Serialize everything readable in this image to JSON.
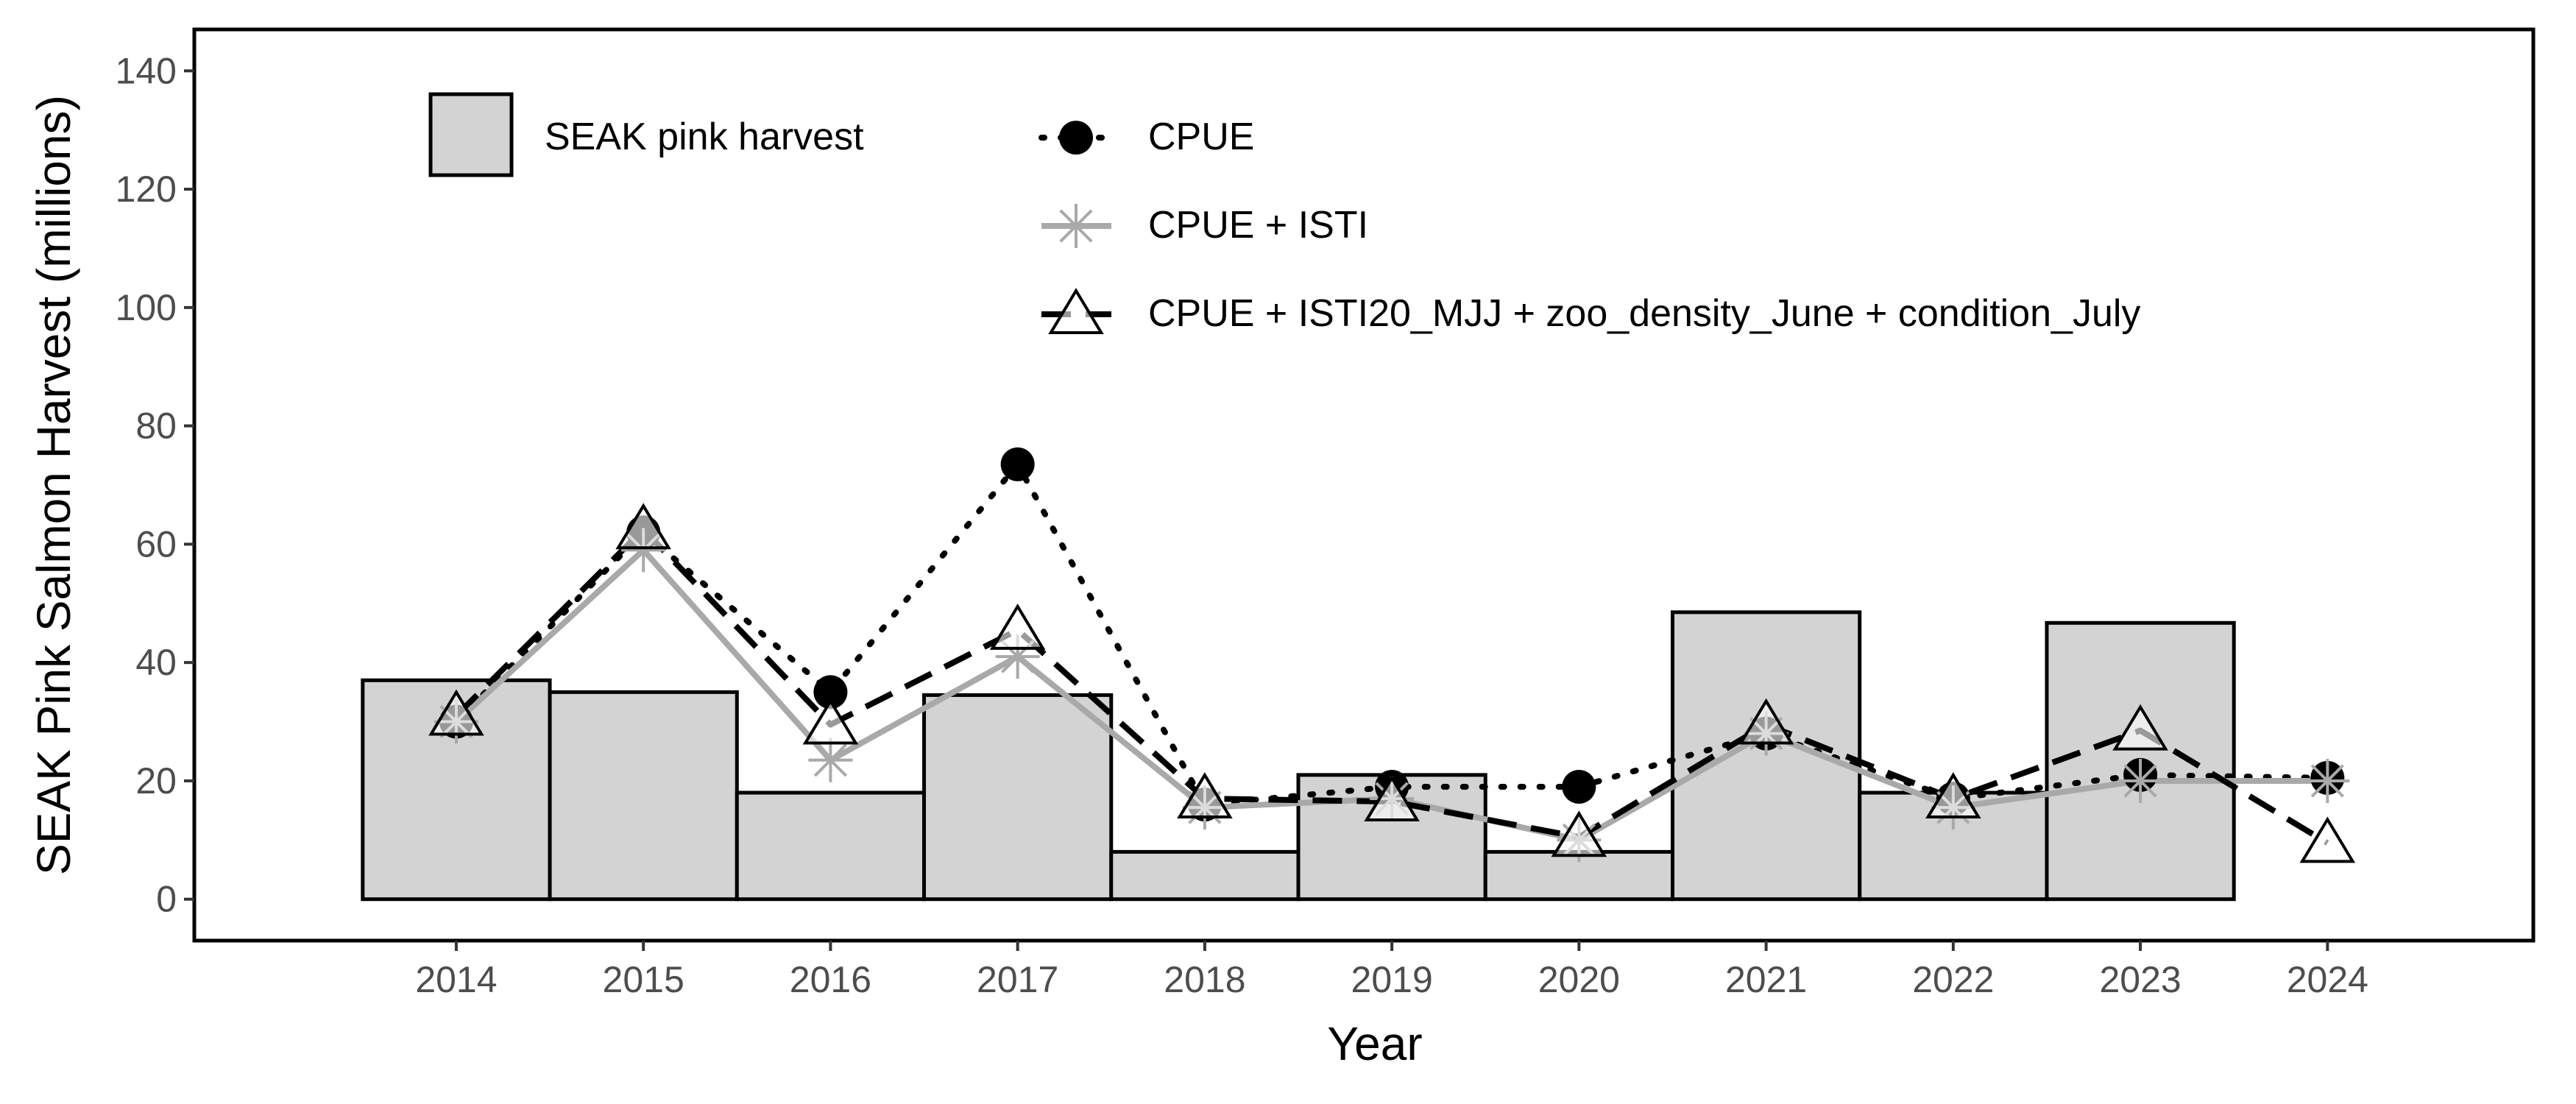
{
  "chart_data": {
    "type": "bar",
    "xlabel": "Year",
    "ylabel": "SEAK Pink Salmon Harvest (millions)",
    "xlim": [
      2012.6,
      2025.1
    ],
    "ylim": [
      -7,
      147
    ],
    "y_ticks": [
      0,
      20,
      40,
      60,
      80,
      100,
      120,
      140
    ],
    "categories": [
      "2014",
      "2015",
      "2016",
      "2017",
      "2018",
      "2019",
      "2020",
      "2021",
      "2022",
      "2023",
      "2024"
    ],
    "bars": {
      "name": "SEAK pink harvest",
      "values": [
        37,
        35,
        18,
        34.5,
        8,
        21,
        8,
        48.5,
        18,
        46.7,
        null
      ],
      "fill": "#d3d3d3",
      "stroke": "#000000"
    },
    "series": [
      {
        "name": "CPUE",
        "values": [
          30,
          62,
          35,
          73.5,
          16,
          19,
          19,
          28,
          17,
          21,
          20.5
        ],
        "color": "#000000",
        "line": "dotted",
        "marker": "filled-circle"
      },
      {
        "name": "CPUE + ISTI",
        "values": [
          30,
          59,
          23.5,
          41,
          15.5,
          17,
          10,
          28,
          15.5,
          20,
          20
        ],
        "color": "#a9a9a9",
        "line": "solid",
        "marker": "asterisk"
      },
      {
        "name": "CPUE + ISTI20_MJJ + zoo_density_June + condition_July",
        "values": [
          31,
          62.5,
          29.5,
          45.5,
          17,
          16.5,
          10.5,
          29.5,
          17,
          28.5,
          9.5
        ],
        "color": "#000000",
        "line": "dashed",
        "marker": "open-triangle"
      }
    ],
    "grid": false,
    "legend_position": "top-left"
  }
}
